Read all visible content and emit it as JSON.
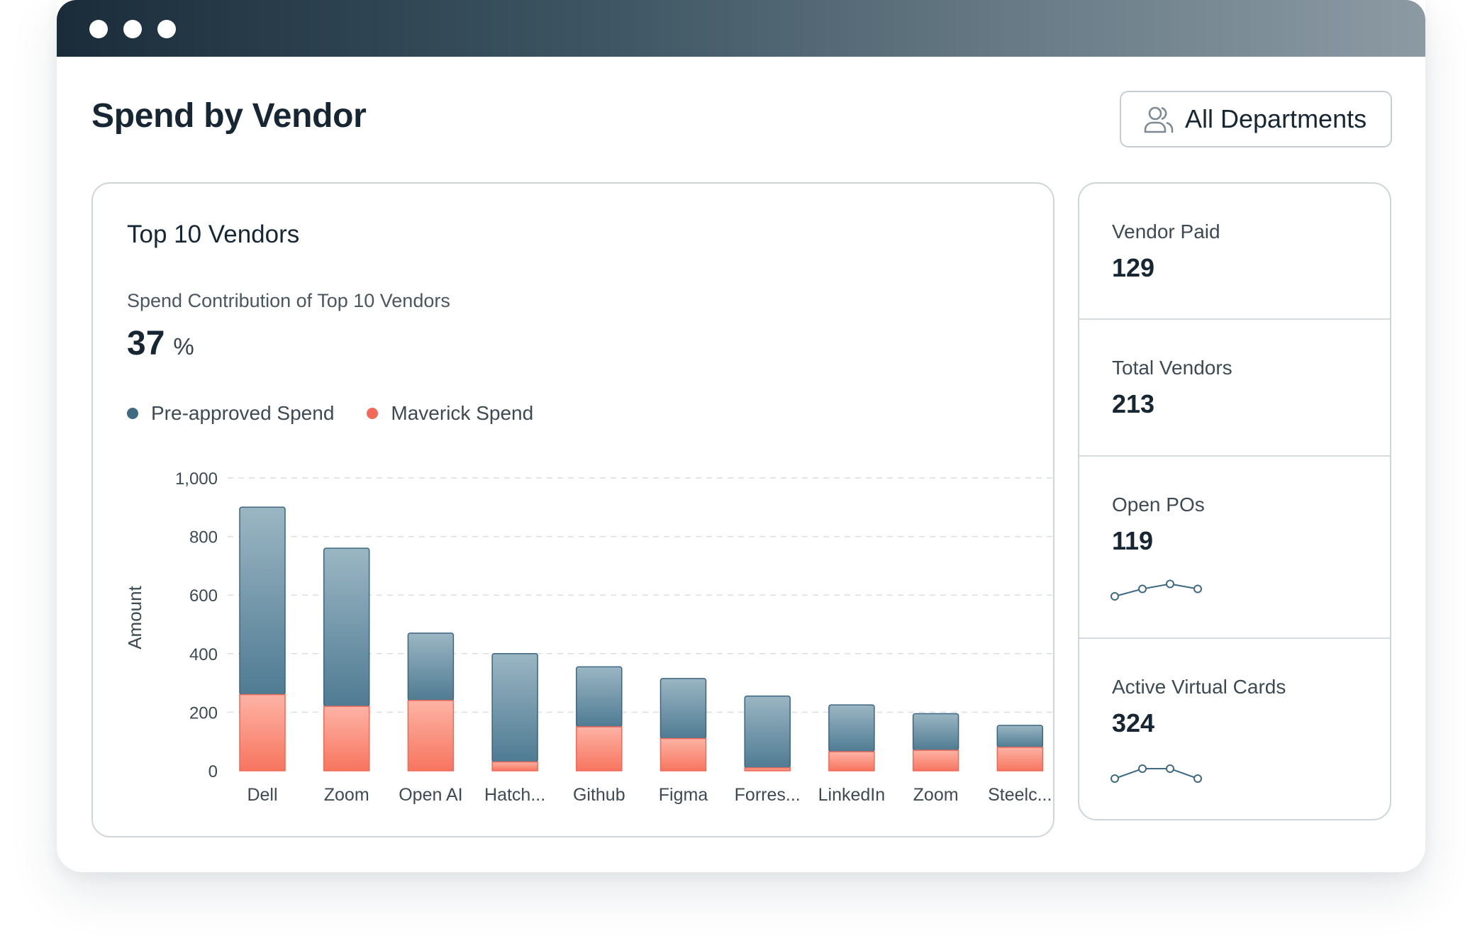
{
  "window": {
    "controls": [
      "close",
      "minimize",
      "maximize"
    ]
  },
  "header": {
    "title": "Spend by Vendor",
    "department_filter": {
      "label": "All Departments",
      "icon": "users-icon"
    }
  },
  "chart_card": {
    "title": "Top 10 Vendors",
    "subtitle": "Spend Contribution of Top 10 Vendors",
    "kpi_value": "37",
    "kpi_unit": "%",
    "legend": [
      {
        "label": "Pre-approved Spend",
        "color": "#3f6a82"
      },
      {
        "label": "Maverick Spend",
        "color": "#f4685a"
      }
    ]
  },
  "chart_data": {
    "type": "bar",
    "stacked": true,
    "title": "",
    "xlabel": "",
    "ylabel": "Amount",
    "ylim": [
      0,
      1000
    ],
    "yticks": [
      0,
      200,
      400,
      600,
      800,
      1000
    ],
    "ytick_labels": [
      "0",
      "200",
      "400",
      "600",
      "800",
      "1,000"
    ],
    "grid": true,
    "categories": [
      "Dell",
      "Zoom",
      "Open AI",
      "Hatch...",
      "Github",
      "Figma",
      "Forres...",
      "LinkedIn",
      "Zoom",
      "Steelc..."
    ],
    "series": [
      {
        "name": "Maverick Spend",
        "color": "#f4685a",
        "values": [
          260,
          220,
          240,
          30,
          150,
          110,
          10,
          65,
          70,
          80
        ]
      },
      {
        "name": "Pre-approved Spend",
        "color": "#3f6a82",
        "values": [
          640,
          540,
          230,
          370,
          205,
          205,
          245,
          160,
          125,
          75
        ]
      }
    ]
  },
  "stats": [
    {
      "label": "Vendor Paid",
      "value": "129"
    },
    {
      "label": "Total Vendors",
      "value": "213"
    },
    {
      "label": "Open POs",
      "value": "119",
      "sparkline": [
        1.0,
        2.5,
        3.5,
        2.5
      ]
    },
    {
      "label": "Active Virtual Cards",
      "value": "324",
      "sparkline": [
        1.0,
        3.0,
        3.0,
        1.0
      ]
    }
  ],
  "colors": {
    "accent": "#3f6a82",
    "maverick": "#f4685a",
    "grid": "#d9dee2",
    "text": "#162733"
  }
}
